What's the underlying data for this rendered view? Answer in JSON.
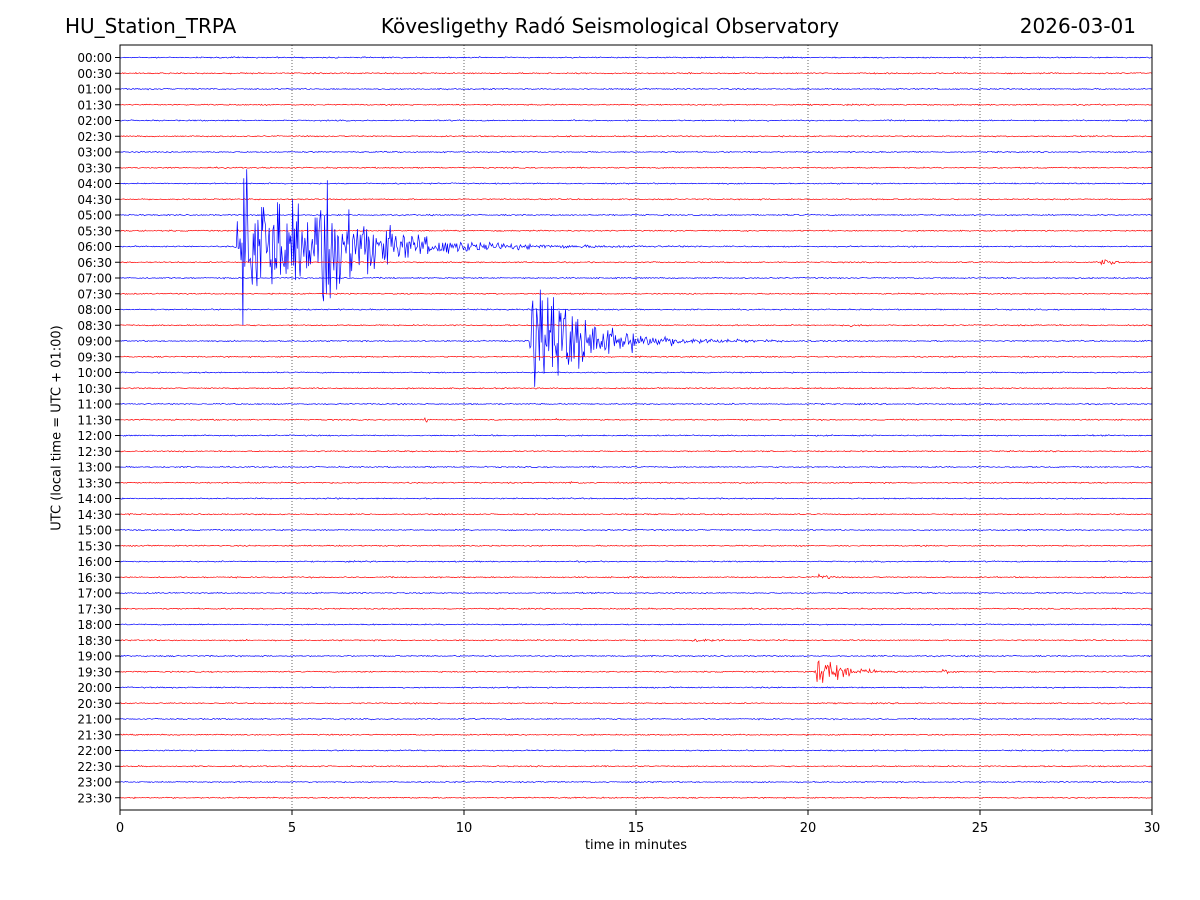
{
  "header": {
    "station": "HU_Station_TRPA",
    "title": "Kövesligethy Radó Seismological Observatory",
    "date": "2026-03-01"
  },
  "chart_data": {
    "type": "line",
    "subtype": "helicorder",
    "xlabel": "time in minutes",
    "ylabel": "UTC (local time = UTC + 01:00)",
    "xlim": [
      0,
      30
    ],
    "x_ticks": [
      0,
      5,
      10,
      15,
      20,
      25,
      30
    ],
    "grid": "vertical dotted at x ticks",
    "row_labels": [
      "00:00",
      "00:30",
      "01:00",
      "01:30",
      "02:00",
      "02:30",
      "03:00",
      "03:30",
      "04:00",
      "04:30",
      "05:00",
      "05:30",
      "06:00",
      "06:30",
      "07:00",
      "07:30",
      "08:00",
      "08:30",
      "09:00",
      "09:30",
      "10:00",
      "10:30",
      "11:00",
      "11:30",
      "12:00",
      "12:30",
      "13:00",
      "13:30",
      "14:00",
      "14:30",
      "15:00",
      "15:30",
      "16:00",
      "16:30",
      "17:00",
      "17:30",
      "18:00",
      "18:30",
      "19:00",
      "19:30",
      "20:00",
      "20:30",
      "21:00",
      "21:30",
      "22:00",
      "22:30",
      "23:00",
      "23:30"
    ],
    "trace_colors": [
      "#0000ff",
      "#ff0000"
    ],
    "events": [
      {
        "row": "06:00",
        "start_min": 3.35,
        "duration_min": 11,
        "peak": 7.5
      },
      {
        "row": "06:00",
        "start_min": 5.75,
        "duration_min": 5,
        "peak": 4.0
      },
      {
        "row": "09:00",
        "start_min": 11.9,
        "duration_min": 7,
        "peak": 6.0
      },
      {
        "row": "06:30",
        "start_min": 28.5,
        "duration_min": 1.2,
        "peak": 0.45
      },
      {
        "row": "08:30",
        "start_min": 21.2,
        "duration_min": 0.8,
        "peak": 0.15
      },
      {
        "row": "10:00",
        "start_min": 25.3,
        "duration_min": 0.3,
        "peak": 0.2
      },
      {
        "row": "11:30",
        "start_min": 8.85,
        "duration_min": 0.3,
        "peak": 0.4
      },
      {
        "row": "11:30",
        "start_min": 12.65,
        "duration_min": 0.2,
        "peak": 0.35
      },
      {
        "row": "13:30",
        "start_min": 12.8,
        "duration_min": 1.7,
        "peak": 0.1
      },
      {
        "row": "16:30",
        "start_min": 20.3,
        "duration_min": 0.8,
        "peak": 0.5
      },
      {
        "row": "18:30",
        "start_min": 16.6,
        "duration_min": 2.5,
        "peak": 0.2
      },
      {
        "row": "19:30",
        "start_min": 20.2,
        "duration_min": 3,
        "peak": 2.0
      },
      {
        "row": "19:30",
        "start_min": 23.9,
        "duration_min": 0.7,
        "peak": 0.5
      }
    ]
  }
}
